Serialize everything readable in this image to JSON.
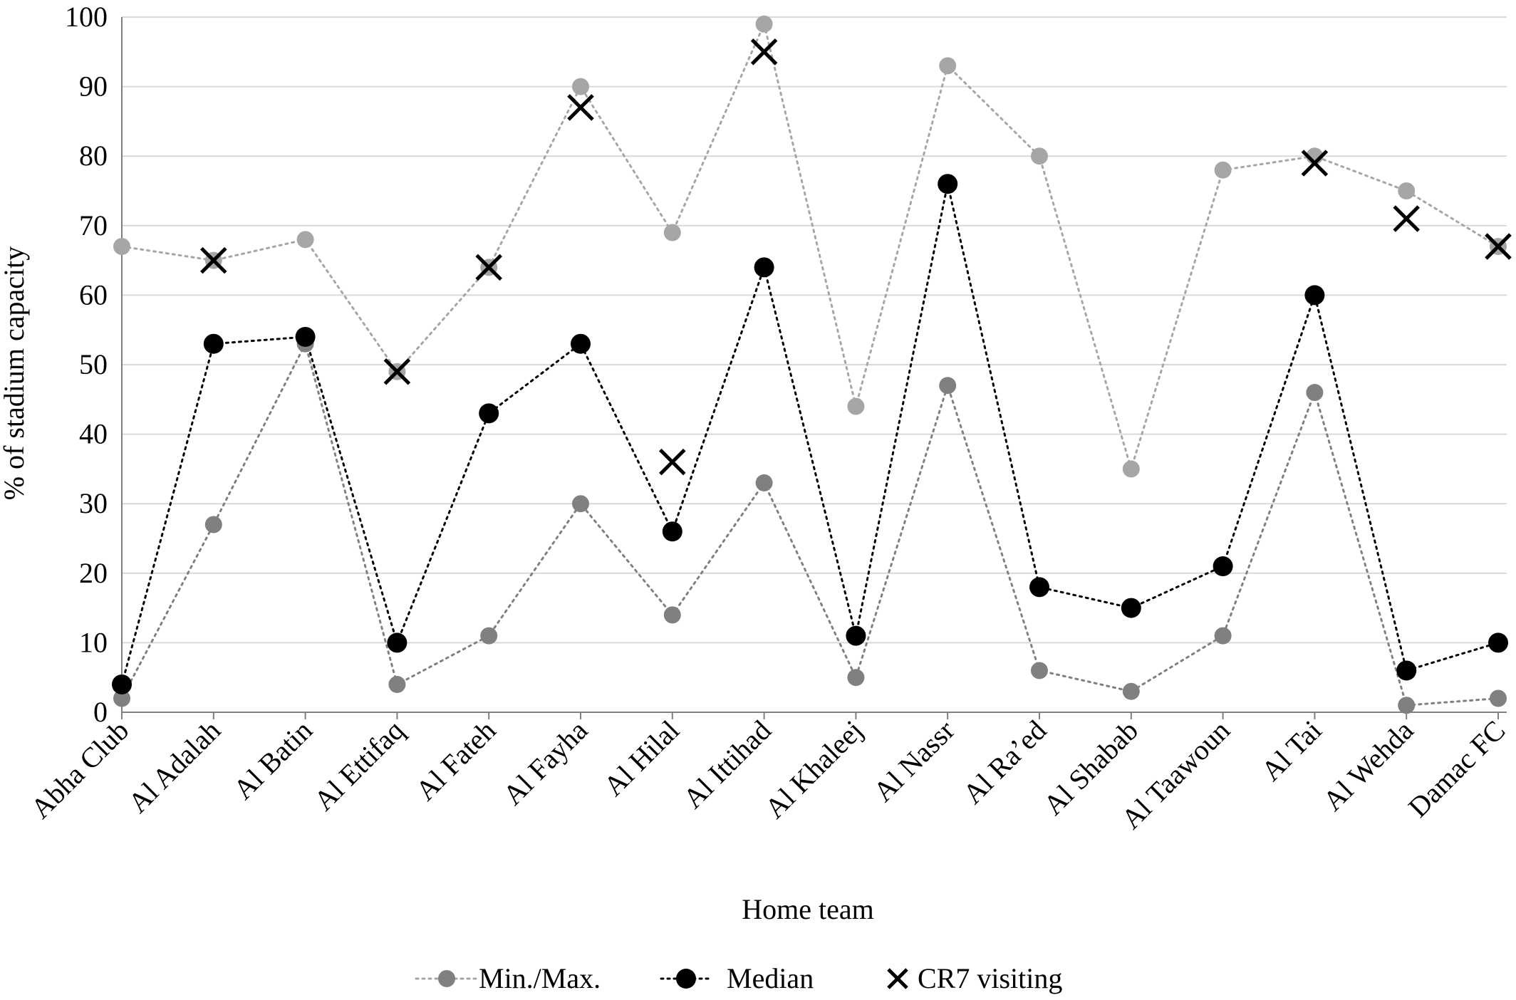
{
  "chart_data": {
    "type": "line",
    "xlabel": "Home team",
    "ylabel": "% of stadium capacity",
    "ylim": [
      0,
      100
    ],
    "yticks": [
      0,
      10,
      20,
      30,
      40,
      50,
      60,
      70,
      80,
      90,
      100
    ],
    "grid": "horizontal",
    "legend_position": "bottom",
    "categories": [
      "Abha Club",
      "Al Adalah",
      "Al Batin",
      "Al Ettifaq",
      "Al Fateh",
      "Al Fayha",
      "Al Hilal",
      "Al Ittihad",
      "Al Khaleej",
      "Al Nassr",
      "Al Ra’ed",
      "Al Shabab",
      "Al Taawoun",
      "Al Tai",
      "Al Wehda",
      "Damac FC"
    ],
    "series": [
      {
        "name": "Min./Max.",
        "role": "max",
        "color": "#a6a6a6",
        "marker": "circle",
        "values": [
          67,
          65,
          68,
          49,
          64,
          90,
          69,
          99,
          44,
          93,
          80,
          35,
          78,
          80,
          75,
          67
        ]
      },
      {
        "name": "Min./Max.",
        "role": "min",
        "color": "#808080",
        "marker": "circle",
        "values": [
          2,
          27,
          53,
          4,
          11,
          30,
          14,
          33,
          5,
          47,
          6,
          3,
          11,
          46,
          1,
          2
        ]
      },
      {
        "name": "Median",
        "role": "median",
        "color": "#000000",
        "marker": "circle",
        "values": [
          4,
          53,
          54,
          10,
          43,
          53,
          26,
          64,
          11,
          76,
          18,
          15,
          21,
          60,
          6,
          10
        ]
      },
      {
        "name": "CR7 visiting",
        "role": "cr7",
        "color": "#000000",
        "marker": "x",
        "values": [
          null,
          65,
          null,
          49,
          64,
          87,
          36,
          95,
          null,
          null,
          null,
          null,
          null,
          79,
          71,
          67
        ]
      }
    ],
    "legend": [
      {
        "label": "Min./Max.",
        "line_color": "#a6a6a6",
        "marker_color": "#808080",
        "marker": "circle"
      },
      {
        "label": "Median",
        "line_color": "#000000",
        "marker_color": "#000000",
        "marker": "circle"
      },
      {
        "label": "CR7 visiting",
        "marker_color": "#000000",
        "marker": "x"
      }
    ],
    "colors": {
      "grid": "#d9d9d9",
      "axis": "#7f7f7f"
    }
  }
}
